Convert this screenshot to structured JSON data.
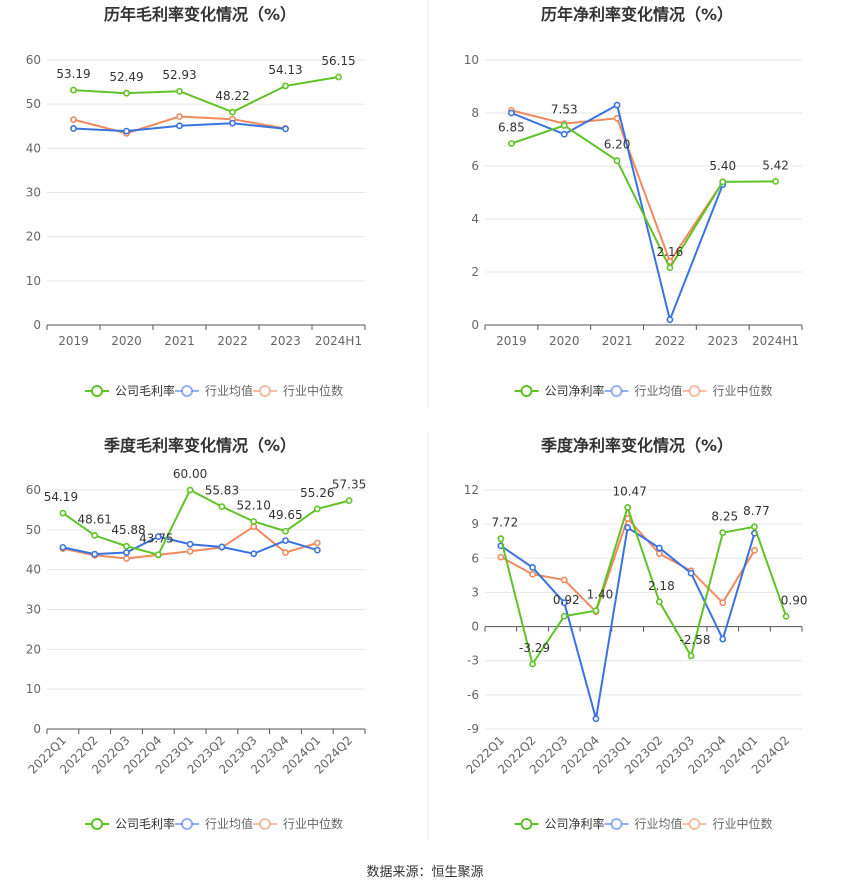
{
  "source": "数据来源：恒生聚源",
  "colors": {
    "company": "#5fc226",
    "industry_avg": "#3a72e0",
    "industry_median": "#f08a5d",
    "grid": "#e6e6e6",
    "axis": "#555555"
  },
  "chart_data": [
    {
      "type": "line",
      "title": "历年毛利率变化情况（%）",
      "categories": [
        "2019",
        "2020",
        "2021",
        "2022",
        "2023",
        "2024H1"
      ],
      "ylim": [
        0,
        60
      ],
      "yticks": [
        0,
        10,
        20,
        30,
        40,
        50,
        60
      ],
      "grid": true,
      "legend_position": "bottom",
      "series": [
        {
          "name": "公司毛利率",
          "color": "#5fc226",
          "values": [
            53.19,
            52.49,
            52.93,
            48.22,
            54.13,
            56.15
          ],
          "labels": [
            "53.19",
            "52.49",
            "52.93",
            "48.22",
            "54.13",
            "56.15"
          ]
        },
        {
          "name": "行业均值",
          "color": "#3a72e0",
          "values": [
            44.5,
            43.9,
            45.1,
            45.7,
            44.4,
            null
          ]
        },
        {
          "name": "行业中位数",
          "color": "#f08a5d",
          "values": [
            46.5,
            43.4,
            47.2,
            46.6,
            44.5,
            null
          ]
        }
      ]
    },
    {
      "type": "line",
      "title": "历年净利率变化情况（%）",
      "categories": [
        "2019",
        "2020",
        "2021",
        "2022",
        "2023",
        "2024H1"
      ],
      "ylim": [
        0,
        10
      ],
      "yticks": [
        0,
        2,
        4,
        6,
        8,
        10
      ],
      "grid": true,
      "legend_position": "bottom",
      "series": [
        {
          "name": "公司净利率",
          "color": "#5fc226",
          "values": [
            6.85,
            7.53,
            6.2,
            2.16,
            5.4,
            5.42
          ],
          "labels": [
            "6.85",
            "7.53",
            "6.20",
            "2.16",
            "5.40",
            "5.42"
          ]
        },
        {
          "name": "行业均值",
          "color": "#3a72e0",
          "values": [
            8.0,
            7.2,
            8.3,
            0.2,
            5.3,
            null
          ]
        },
        {
          "name": "行业中位数",
          "color": "#f08a5d",
          "values": [
            8.1,
            7.6,
            7.8,
            2.4,
            5.4,
            null
          ]
        }
      ]
    },
    {
      "type": "line",
      "title": "季度毛利率变化情况（%）",
      "categories": [
        "2022Q1",
        "2022Q2",
        "2022Q3",
        "2022Q4",
        "2023Q1",
        "2023Q2",
        "2023Q3",
        "2023Q4",
        "2024Q1",
        "2024Q2"
      ],
      "ylim": [
        0,
        60
      ],
      "yticks": [
        0,
        10,
        20,
        30,
        40,
        50,
        60
      ],
      "grid": true,
      "legend_position": "bottom",
      "series": [
        {
          "name": "公司毛利率",
          "color": "#5fc226",
          "values": [
            54.19,
            48.61,
            45.88,
            43.75,
            60.0,
            55.83,
            52.1,
            49.65,
            55.26,
            57.35
          ],
          "labels": [
            "54.19",
            "48.61",
            "45.88",
            "43.75",
            "60.00",
            "55.83",
            "52.10",
            "49.65",
            "55.26",
            "57.35"
          ]
        },
        {
          "name": "行业均值",
          "color": "#3a72e0",
          "values": [
            45.6,
            43.9,
            44.3,
            48.3,
            46.4,
            45.7,
            44.0,
            47.3,
            44.9,
            null
          ]
        },
        {
          "name": "行业中位数",
          "color": "#f08a5d",
          "values": [
            45.3,
            43.6,
            42.8,
            43.7,
            44.6,
            45.6,
            50.8,
            44.3,
            46.7,
            null
          ]
        }
      ]
    },
    {
      "type": "line",
      "title": "季度净利率变化情况（%）",
      "categories": [
        "2022Q1",
        "2022Q2",
        "2022Q3",
        "2022Q4",
        "2023Q1",
        "2023Q2",
        "2023Q3",
        "2023Q4",
        "2024Q1",
        "2024Q2"
      ],
      "ylim": [
        -9,
        12
      ],
      "yticks": [
        -9,
        -6,
        -3,
        0,
        3,
        6,
        9,
        12
      ],
      "grid": true,
      "legend_position": "bottom",
      "series": [
        {
          "name": "公司净利率",
          "color": "#5fc226",
          "values": [
            7.72,
            -3.29,
            0.92,
            1.4,
            10.47,
            2.18,
            -2.58,
            8.25,
            8.77,
            0.9
          ],
          "labels": [
            "7.72",
            "-3.29",
            "0.92",
            "1.40",
            "10.47",
            "2.18",
            "-2.58",
            "8.25",
            "8.77",
            "0.90"
          ]
        },
        {
          "name": "行业均值",
          "color": "#3a72e0",
          "values": [
            7.1,
            5.2,
            2.1,
            -8.1,
            8.7,
            6.9,
            4.7,
            -1.1,
            8.2,
            null
          ]
        },
        {
          "name": "行业中位数",
          "color": "#f08a5d",
          "values": [
            6.1,
            4.6,
            4.1,
            1.3,
            9.5,
            6.4,
            4.9,
            2.1,
            6.7,
            null
          ]
        }
      ]
    }
  ]
}
